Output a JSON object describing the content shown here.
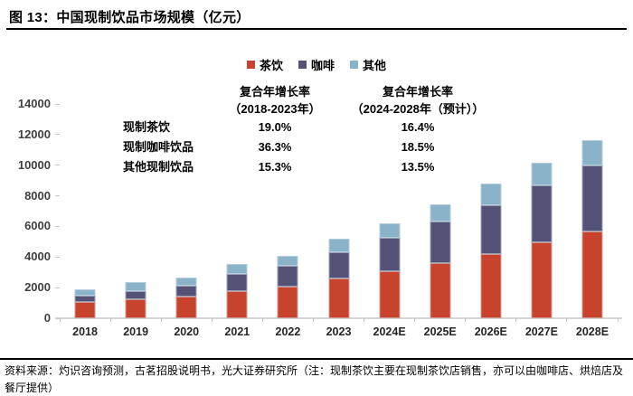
{
  "figure": {
    "title": "图 13：中国现制饮品市场规模（亿元）",
    "source_note": "资料来源：灼识咨询预测，古茗招股说明书，光大证券研究所（注：现制茶饮主要在现制茶饮店销售，亦可以由咖啡店、烘焙店及餐厅提供）"
  },
  "colors": {
    "tea": "#C7432D",
    "coffee": "#545377",
    "other": "#8AB2C8",
    "axis_line": "#D4D4D4",
    "rule": "#000000"
  },
  "cagr_table": {
    "columns": [
      {
        "title": "复合年增长率",
        "subtitle": "（2018-2023年）"
      },
      {
        "title": "复合年增长率",
        "subtitle": "（2024-2028年（预计））"
      }
    ],
    "rows": [
      {
        "label": "现制茶饮",
        "v1": "19.0%",
        "v2": "16.4%"
      },
      {
        "label": "现制咖啡饮品",
        "v1": "36.3%",
        "v2": "18.5%"
      },
      {
        "label": "其他现制饮品",
        "v1": "15.3%",
        "v2": "13.5%"
      }
    ]
  },
  "chart_data": {
    "type": "bar",
    "stacked": true,
    "title": "中国现制饮品市场规模（亿元）",
    "xlabel": "",
    "ylabel": "",
    "ylim": [
      0,
      14000
    ],
    "y_ticks": [
      0,
      2000,
      4000,
      6000,
      8000,
      10000,
      12000,
      14000
    ],
    "grid": false,
    "legend_position": "top",
    "categories": [
      "2018",
      "2019",
      "2020",
      "2021",
      "2022",
      "2023",
      "2024E",
      "2025E",
      "2026E",
      "2027E",
      "2028E"
    ],
    "series": [
      {
        "name": "茶饮",
        "color": "#C7432D",
        "values": [
          1085,
          1270,
          1400,
          1790,
          2045,
          2585,
          3050,
          3600,
          4210,
          4940,
          5650
        ]
      },
      {
        "name": "咖啡",
        "color": "#545377",
        "values": [
          366,
          530,
          745,
          1085,
          1375,
          1721,
          2185,
          2715,
          3185,
          3735,
          4330
        ]
      },
      {
        "name": "其他",
        "color": "#8AB2C8",
        "values": [
          430,
          580,
          530,
          650,
          670,
          869,
          980,
          1120,
          1380,
          1515,
          1655
        ]
      }
    ]
  }
}
